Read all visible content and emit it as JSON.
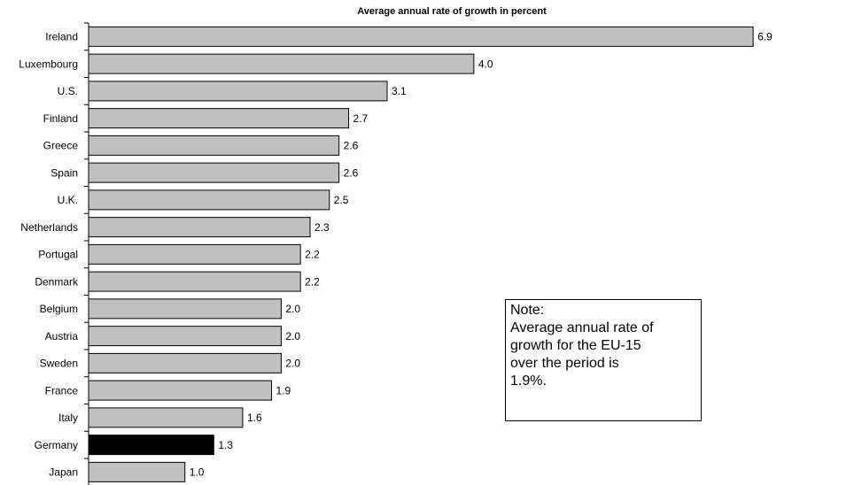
{
  "chart_data": {
    "type": "hbar",
    "title": "Average annual rate of growth in percent",
    "categories": [
      "Ireland",
      "Luxembourg",
      "U.S.",
      "Finland",
      "Greece",
      "Spain",
      "U.K.",
      "Netherlands",
      "Portugal",
      "Denmark",
      "Belgium",
      "Austria",
      "Sweden",
      "France",
      "Italy",
      "Germany",
      "Japan"
    ],
    "values": [
      6.9,
      4.0,
      3.1,
      2.7,
      2.6,
      2.6,
      2.5,
      2.3,
      2.2,
      2.2,
      2.0,
      2.0,
      2.0,
      1.9,
      1.6,
      1.3,
      1.0
    ],
    "value_labels": [
      "6.9",
      "4.0",
      "3.1",
      "2.7",
      "2.6",
      "2.6",
      "2.5",
      "2.3",
      "2.2",
      "2.2",
      "2.0",
      "2.0",
      "2.0",
      "1.9",
      "1.6",
      "1.3",
      "1.0"
    ],
    "colors": [
      "#c0c0c0",
      "#c0c0c0",
      "#c0c0c0",
      "#c0c0c0",
      "#c0c0c0",
      "#c0c0c0",
      "#c0c0c0",
      "#c0c0c0",
      "#c0c0c0",
      "#c0c0c0",
      "#c0c0c0",
      "#c0c0c0",
      "#c0c0c0",
      "#c0c0c0",
      "#c0c0c0",
      "#000000",
      "#c0c0c0"
    ],
    "xlim": [
      0,
      7
    ],
    "note": {
      "title": "Note:",
      "lines": [
        "Average annual rate of",
        "growth for the EU-15",
        "over the period is",
        "1.9%."
      ]
    }
  }
}
